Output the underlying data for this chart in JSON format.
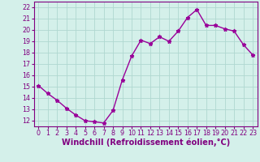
{
  "x": [
    0,
    1,
    2,
    3,
    4,
    5,
    6,
    7,
    8,
    9,
    10,
    11,
    12,
    13,
    14,
    15,
    16,
    17,
    18,
    19,
    20,
    21,
    22,
    23
  ],
  "y": [
    15.1,
    14.4,
    13.8,
    13.1,
    12.5,
    12.0,
    11.9,
    11.8,
    12.9,
    15.6,
    17.7,
    19.1,
    18.8,
    19.4,
    19.0,
    19.9,
    21.1,
    21.8,
    20.4,
    20.4,
    20.1,
    19.9,
    18.7,
    17.8
  ],
  "line_color": "#990099",
  "marker": "*",
  "marker_color": "#990099",
  "bg_color": "#d4f0ea",
  "grid_color": "#b0d8d0",
  "xlabel": "Windchill (Refroidissement éolien,°C)",
  "xlabel_color": "#800080",
  "ylim": [
    11.5,
    22.5
  ],
  "yticks": [
    12,
    13,
    14,
    15,
    16,
    17,
    18,
    19,
    20,
    21,
    22
  ],
  "xlim": [
    -0.5,
    23.5
  ],
  "xticks": [
    0,
    1,
    2,
    3,
    4,
    5,
    6,
    7,
    8,
    9,
    10,
    11,
    12,
    13,
    14,
    15,
    16,
    17,
    18,
    19,
    20,
    21,
    22,
    23
  ],
  "tick_color": "#800080",
  "tick_fontsize": 5.8,
  "xlabel_fontsize": 7.0,
  "spine_color": "#800080",
  "line_width": 1.0,
  "marker_size": 3.5
}
